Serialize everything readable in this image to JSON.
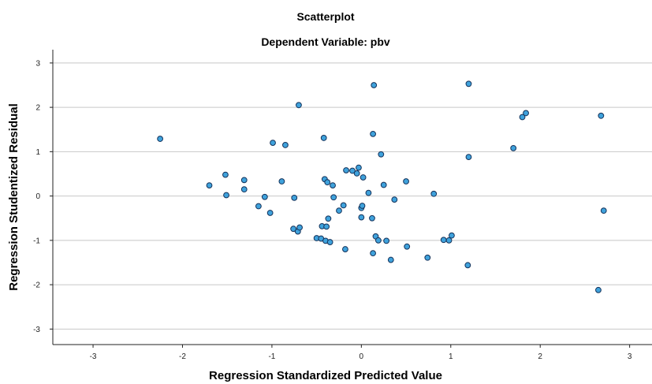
{
  "chart_data": {
    "type": "scatter",
    "title": "Scatterplot",
    "subtitle": "Dependent Variable: pbv",
    "xlabel": "Regression Standardized Predicted Value",
    "ylabel": "Regression Studentized Residual",
    "xlim": [
      -3.45,
      3.25
    ],
    "ylim": [
      -3.35,
      3.3
    ],
    "xticks": [
      -3,
      -2,
      -1,
      0,
      1,
      2,
      3
    ],
    "yticks": [
      -3,
      -2,
      -1,
      0,
      1,
      2,
      3
    ],
    "xtick_labels": [
      "-3",
      "-2",
      "-1",
      "0",
      "1",
      "2",
      "3"
    ],
    "ytick_labels": [
      "-3",
      "-2",
      "-1",
      "0",
      "1",
      "2",
      "3"
    ],
    "grid": "horizontal",
    "colors": {
      "point_fill": "#3fa2dc",
      "point_stroke": "#14325a",
      "grid": "#c8c8c8",
      "axis": "#222222"
    },
    "points": [
      {
        "x": -2.25,
        "y": 1.29
      },
      {
        "x": -1.7,
        "y": 0.24
      },
      {
        "x": -1.52,
        "y": 0.48
      },
      {
        "x": -1.51,
        "y": 0.02
      },
      {
        "x": -1.31,
        "y": 0.36
      },
      {
        "x": -1.31,
        "y": 0.15
      },
      {
        "x": -1.15,
        "y": -0.23
      },
      {
        "x": -1.08,
        "y": -0.02
      },
      {
        "x": -1.02,
        "y": -0.38
      },
      {
        "x": -0.99,
        "y": 1.2
      },
      {
        "x": -0.89,
        "y": 0.33
      },
      {
        "x": -0.85,
        "y": 1.15
      },
      {
        "x": -0.76,
        "y": -0.74
      },
      {
        "x": -0.75,
        "y": -0.04
      },
      {
        "x": -0.71,
        "y": -0.8
      },
      {
        "x": -0.7,
        "y": 2.05
      },
      {
        "x": -0.69,
        "y": -0.71
      },
      {
        "x": -0.5,
        "y": -0.95
      },
      {
        "x": -0.45,
        "y": -0.96
      },
      {
        "x": -0.44,
        "y": -0.68
      },
      {
        "x": -0.42,
        "y": 1.31
      },
      {
        "x": -0.41,
        "y": 0.38
      },
      {
        "x": -0.4,
        "y": -1.01
      },
      {
        "x": -0.39,
        "y": -0.69
      },
      {
        "x": -0.38,
        "y": 0.31
      },
      {
        "x": -0.37,
        "y": -0.51
      },
      {
        "x": -0.35,
        "y": -1.04
      },
      {
        "x": -0.32,
        "y": 0.24
      },
      {
        "x": -0.31,
        "y": -0.03
      },
      {
        "x": -0.25,
        "y": -0.33
      },
      {
        "x": -0.2,
        "y": -0.21
      },
      {
        "x": -0.18,
        "y": -1.2
      },
      {
        "x": -0.17,
        "y": 0.58
      },
      {
        "x": -0.1,
        "y": 0.57
      },
      {
        "x": -0.05,
        "y": 0.51
      },
      {
        "x": -0.03,
        "y": 0.64
      },
      {
        "x": 0.0,
        "y": -0.48
      },
      {
        "x": 0.0,
        "y": -0.27
      },
      {
        "x": 0.01,
        "y": -0.22
      },
      {
        "x": 0.02,
        "y": 0.42
      },
      {
        "x": 0.08,
        "y": 0.07
      },
      {
        "x": 0.12,
        "y": -0.5
      },
      {
        "x": 0.13,
        "y": -1.29
      },
      {
        "x": 0.13,
        "y": 1.4
      },
      {
        "x": 0.14,
        "y": 2.5
      },
      {
        "x": 0.16,
        "y": -0.91
      },
      {
        "x": 0.19,
        "y": -1.0
      },
      {
        "x": 0.22,
        "y": 0.94
      },
      {
        "x": 0.25,
        "y": 0.25
      },
      {
        "x": 0.28,
        "y": -1.01
      },
      {
        "x": 0.33,
        "y": -1.44
      },
      {
        "x": 0.37,
        "y": -0.08
      },
      {
        "x": 0.5,
        "y": 0.33
      },
      {
        "x": 0.51,
        "y": -1.14
      },
      {
        "x": 0.74,
        "y": -1.39
      },
      {
        "x": 0.81,
        "y": 0.05
      },
      {
        "x": 0.92,
        "y": -0.99
      },
      {
        "x": 0.98,
        "y": -1.0
      },
      {
        "x": 1.01,
        "y": -0.89
      },
      {
        "x": 1.19,
        "y": -1.56
      },
      {
        "x": 1.2,
        "y": 2.53
      },
      {
        "x": 1.2,
        "y": 0.88
      },
      {
        "x": 1.7,
        "y": 1.08
      },
      {
        "x": 1.8,
        "y": 1.78
      },
      {
        "x": 1.84,
        "y": 1.87
      },
      {
        "x": 2.65,
        "y": -2.12
      },
      {
        "x": 2.68,
        "y": 1.81
      },
      {
        "x": 2.71,
        "y": -0.33
      }
    ]
  }
}
